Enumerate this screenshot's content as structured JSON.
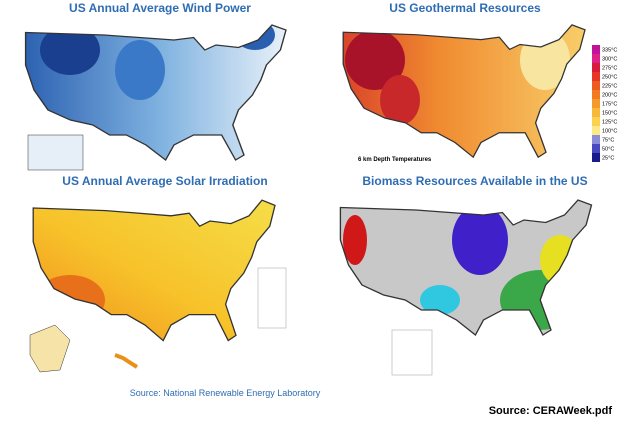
{
  "panels": [
    {
      "title": "US Annual Average Wind Power"
    },
    {
      "title": "US Geothermal Resources",
      "caption": "6 km Depth Temperatures",
      "legend": [
        {
          "label": "335°C",
          "color": "#c0139a"
        },
        {
          "label": "300°C",
          "color": "#e0208a"
        },
        {
          "label": "275°C",
          "color": "#d81b3a"
        },
        {
          "label": "250°C",
          "color": "#e8352a"
        },
        {
          "label": "225°C",
          "color": "#ef5a22"
        },
        {
          "label": "200°C",
          "color": "#f27a22"
        },
        {
          "label": "175°C",
          "color": "#f59a2a"
        },
        {
          "label": "150°C",
          "color": "#f8b83a"
        },
        {
          "label": "125°C",
          "color": "#fad250"
        },
        {
          "label": "100°C",
          "color": "#fbe98a"
        },
        {
          "label": "75°C",
          "color": "#8c8cd8"
        },
        {
          "label": "50°C",
          "color": "#4848c0"
        },
        {
          "label": "25°C",
          "color": "#1a1a8c"
        }
      ]
    },
    {
      "title": "US Annual Average Solar Irradiation"
    },
    {
      "title": "Biomass Resources Available in the US"
    }
  ],
  "source_left": "Source: National Renewable Energy Laboratory",
  "source_right": "Source: CERAWeek.pdf"
}
